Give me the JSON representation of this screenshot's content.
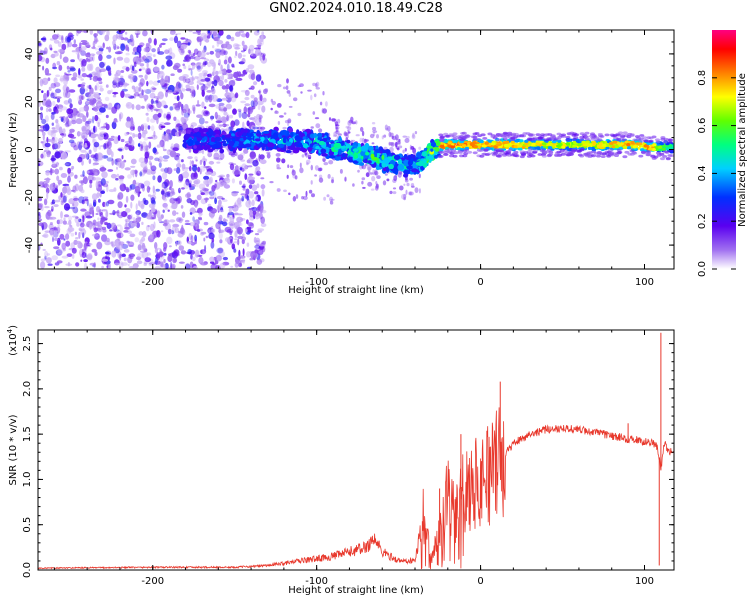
{
  "title": "GN02.2024.010.18.49.C28",
  "chart_data": [
    {
      "type": "heatmap",
      "xlabel": "Height of straight line (km)",
      "ylabel": "Frequency (Hz)",
      "xlim": [
        -270,
        118
      ],
      "ylim": [
        -50,
        50
      ],
      "xticks": [
        -200,
        -100,
        0,
        100
      ],
      "yticks": [
        -40,
        -20,
        0,
        20,
        40
      ],
      "colorbar": {
        "label": "Normalized spectral amplitude",
        "range": [
          0,
          1
        ],
        "ticks": [
          "0.0",
          "0.2",
          "0.4",
          "0.6",
          "0.8"
        ],
        "colors": [
          "#ffffff",
          "#a070f0",
          "#5a00f0",
          "#0030ff",
          "#00d0ff",
          "#00ff80",
          "#60ff00",
          "#ffff00",
          "#ff8000",
          "#ff0000",
          "#ff0080"
        ]
      },
      "ridge": {
        "x": [
          -270,
          -240,
          -200,
          -170,
          -140,
          -120,
          -100,
          -80,
          -65,
          -55,
          -45,
          -38,
          -30,
          -22,
          0,
          30,
          60,
          90,
          105,
          110,
          118
        ],
        "y": [
          5,
          5,
          4,
          4,
          4,
          4,
          3,
          -1,
          -3,
          -5,
          -7,
          -6,
          -1,
          2,
          2,
          2,
          2,
          2,
          1,
          1,
          1
        ],
        "amplitude": [
          0.3,
          0.3,
          0.3,
          0.35,
          0.45,
          0.45,
          0.5,
          0.55,
          0.6,
          0.55,
          0.5,
          0.55,
          0.7,
          0.85,
          0.8,
          0.75,
          0.7,
          0.8,
          0.8,
          0.6,
          0.5
        ]
      }
    },
    {
      "type": "line",
      "xlabel": "Height of straight line (km)",
      "ylabel": "SNR (10 * v/v)",
      "multiplier": "(x10",
      "multiplier_exp": "4",
      "multiplier_close": ")",
      "xlim": [
        -270,
        118
      ],
      "ylim": [
        0,
        2.65
      ],
      "xticks": [
        -200,
        -100,
        0,
        100
      ],
      "yticks": [
        "0.0",
        "0.5",
        "1.0",
        "1.5",
        "2.0",
        "2.5"
      ],
      "color": "#e8382c",
      "envelope": {
        "x": [
          -270,
          -200,
          -150,
          -130,
          -110,
          -90,
          -80,
          -70,
          -65,
          -60,
          -50,
          -40,
          -38,
          -35,
          -30,
          -25,
          -20,
          -15,
          -10,
          0,
          10,
          20,
          30,
          40,
          50,
          60,
          70,
          80,
          90,
          100,
          105,
          108,
          110,
          112,
          115,
          118
        ],
        "y": [
          0.02,
          0.03,
          0.03,
          0.05,
          0.1,
          0.15,
          0.2,
          0.25,
          0.35,
          0.2,
          0.1,
          0.1,
          0.3,
          0.6,
          0.15,
          0.4,
          0.9,
          0.6,
          0.9,
          1.0,
          1.15,
          1.4,
          1.5,
          1.55,
          1.57,
          1.55,
          1.52,
          1.48,
          1.45,
          1.42,
          1.4,
          1.35,
          1.1,
          1.4,
          1.32,
          1.28
        ]
      },
      "spikes": [
        {
          "x": -25,
          "y": 0.9
        },
        {
          "x": -12,
          "y": 1.5
        },
        {
          "x": 12,
          "y": 2.08
        },
        {
          "x": 90,
          "y": 1.62
        },
        {
          "x": 110,
          "y": 2.62
        },
        {
          "x": 109,
          "y": 0.05
        }
      ]
    }
  ]
}
